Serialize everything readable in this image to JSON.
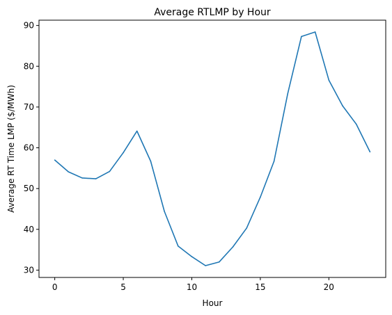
{
  "chart_data": {
    "type": "line",
    "title": "Average RTLMP by Hour",
    "xlabel": "Hour",
    "ylabel": "Average RT Time LMP ($/MWh)",
    "xlim": [
      -1.15,
      24.15
    ],
    "ylim": [
      28.2,
      91.3
    ],
    "xticks": [
      0,
      5,
      10,
      15,
      20
    ],
    "yticks": [
      30,
      40,
      50,
      60,
      70,
      80,
      90
    ],
    "grid": false,
    "series": [
      {
        "color": "#1f77b4",
        "x": [
          0,
          1,
          2,
          3,
          4,
          5,
          6,
          7,
          8,
          9,
          10,
          11,
          12,
          13,
          14,
          15,
          16,
          17,
          18,
          19,
          20,
          21,
          22,
          23
        ],
        "values": [
          57.0,
          54.1,
          52.6,
          52.4,
          54.2,
          58.8,
          64.1,
          56.7,
          44.4,
          35.9,
          33.3,
          31.1,
          32.0,
          35.7,
          40.3,
          47.9,
          56.7,
          73.3,
          87.3,
          88.4,
          76.6,
          70.3,
          65.8,
          59.0
        ]
      }
    ]
  }
}
